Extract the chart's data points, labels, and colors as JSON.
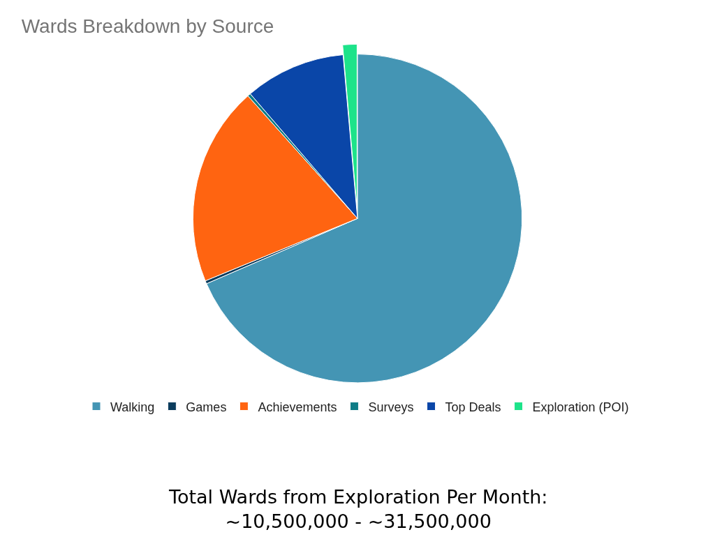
{
  "chart_data": {
    "type": "pie",
    "title": "Wards Breakdown by Source",
    "categories": [
      "Walking",
      "Games",
      "Achievements",
      "Surveys",
      "Top Deals",
      "Exploration (POI)"
    ],
    "values": [
      68.5,
      0.3,
      19.6,
      0.3,
      9.9,
      1.4
    ],
    "colors": [
      "#4495b4",
      "#0b3c5d",
      "#ff6411",
      "#0e7c86",
      "#0a46a8",
      "#1de38a"
    ],
    "legend": "bottom",
    "annotations": [
      "Total Wards from Exploration Per Month:\n~10,500,000 - ~31,500,000"
    ]
  }
}
